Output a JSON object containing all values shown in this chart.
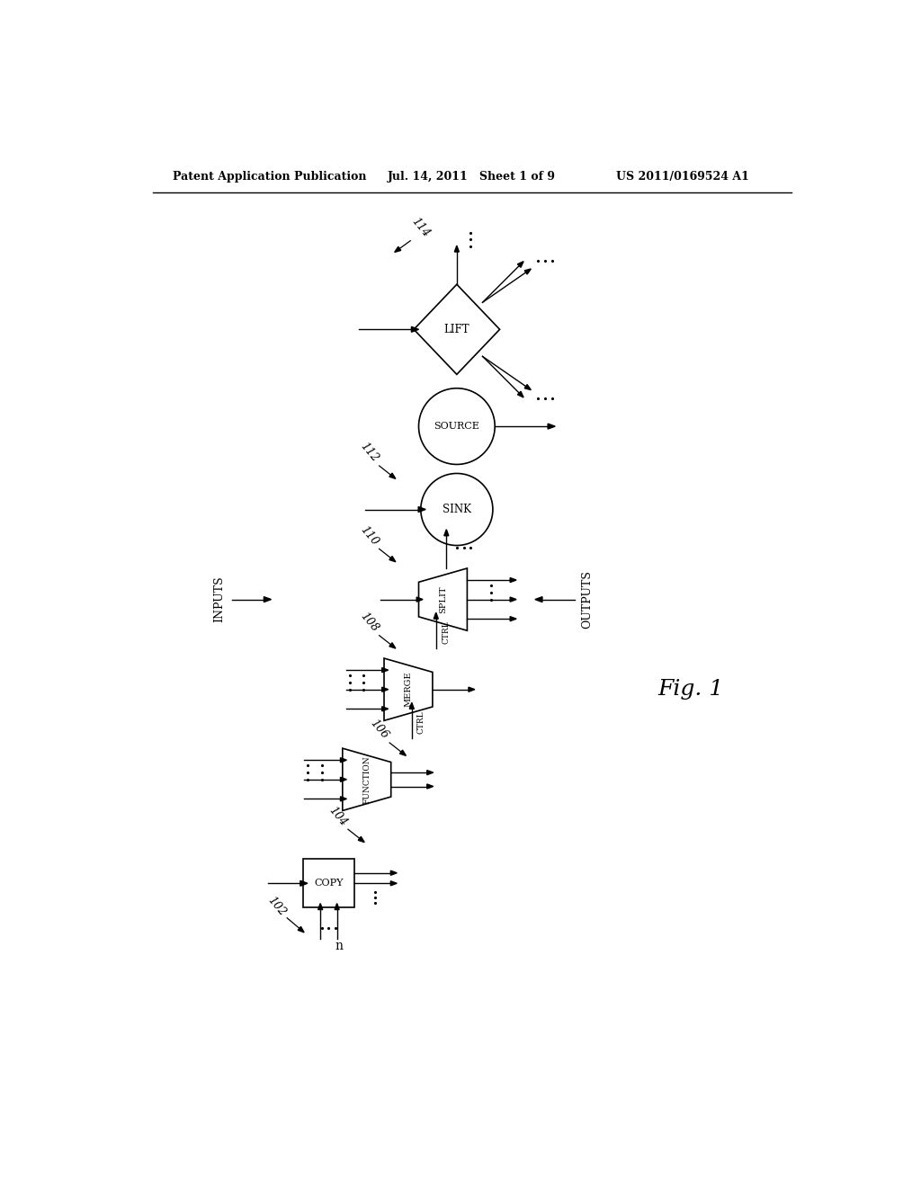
{
  "background_color": "#ffffff",
  "header_text": "Patent Application Publication",
  "header_date": "Jul. 14, 2011   Sheet 1 of 9",
  "header_patent": "US 2011/0169524 A1",
  "fig_label": "Fig. 1"
}
